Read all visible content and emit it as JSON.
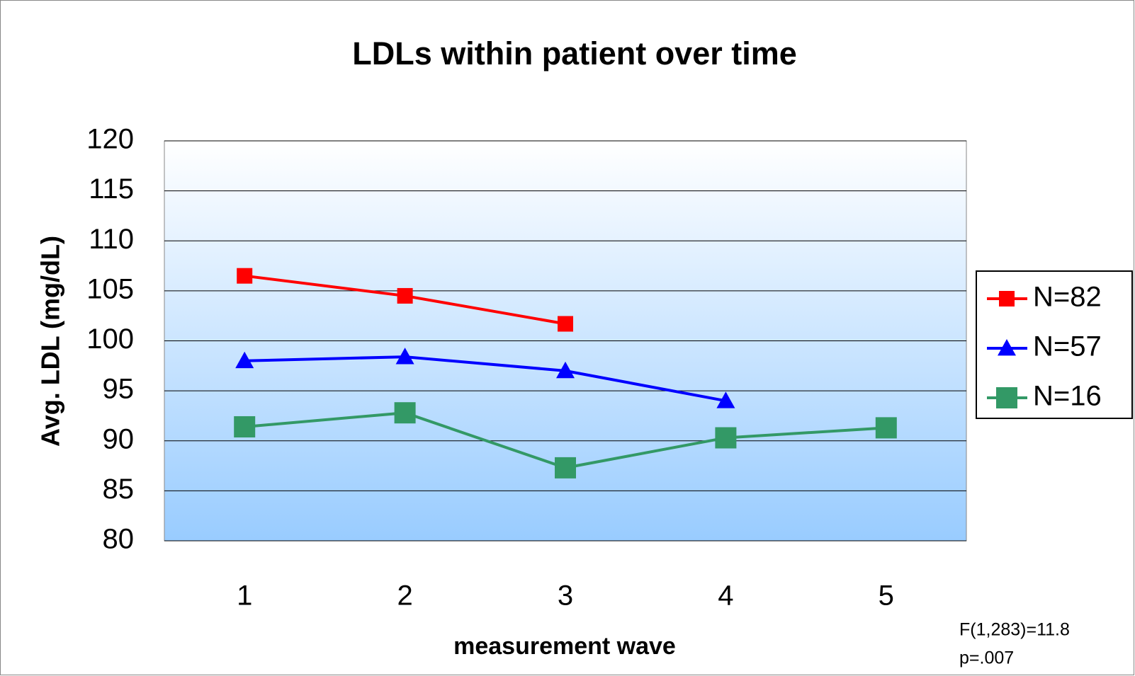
{
  "chart_data": {
    "type": "line",
    "title": "LDLs within patient over time",
    "x_label": "measurement wave",
    "y_label": "Avg. LDL (mg/dL)",
    "categories": [
      "1",
      "2",
      "3",
      "4",
      "5"
    ],
    "series": [
      {
        "name": "N=82",
        "color": "#ff0000",
        "marker": "square",
        "values": [
          106.5,
          104.5,
          101.7,
          null,
          null
        ]
      },
      {
        "name": "N=57",
        "color": "#0000ff",
        "marker": "triangle",
        "values": [
          98,
          98.4,
          97,
          94,
          null
        ]
      },
      {
        "name": "N=16",
        "color": "#339966",
        "marker": "big-square",
        "values": [
          91.4,
          92.8,
          87.3,
          90.3,
          91.3
        ]
      }
    ],
    "ylim": [
      80,
      120
    ],
    "yticks": [
      80,
      85,
      90,
      95,
      100,
      105,
      110,
      115,
      120
    ],
    "grid": true,
    "legend": "right",
    "annotations": [
      "F(1,283)=11.8",
      "p=.007"
    ]
  }
}
